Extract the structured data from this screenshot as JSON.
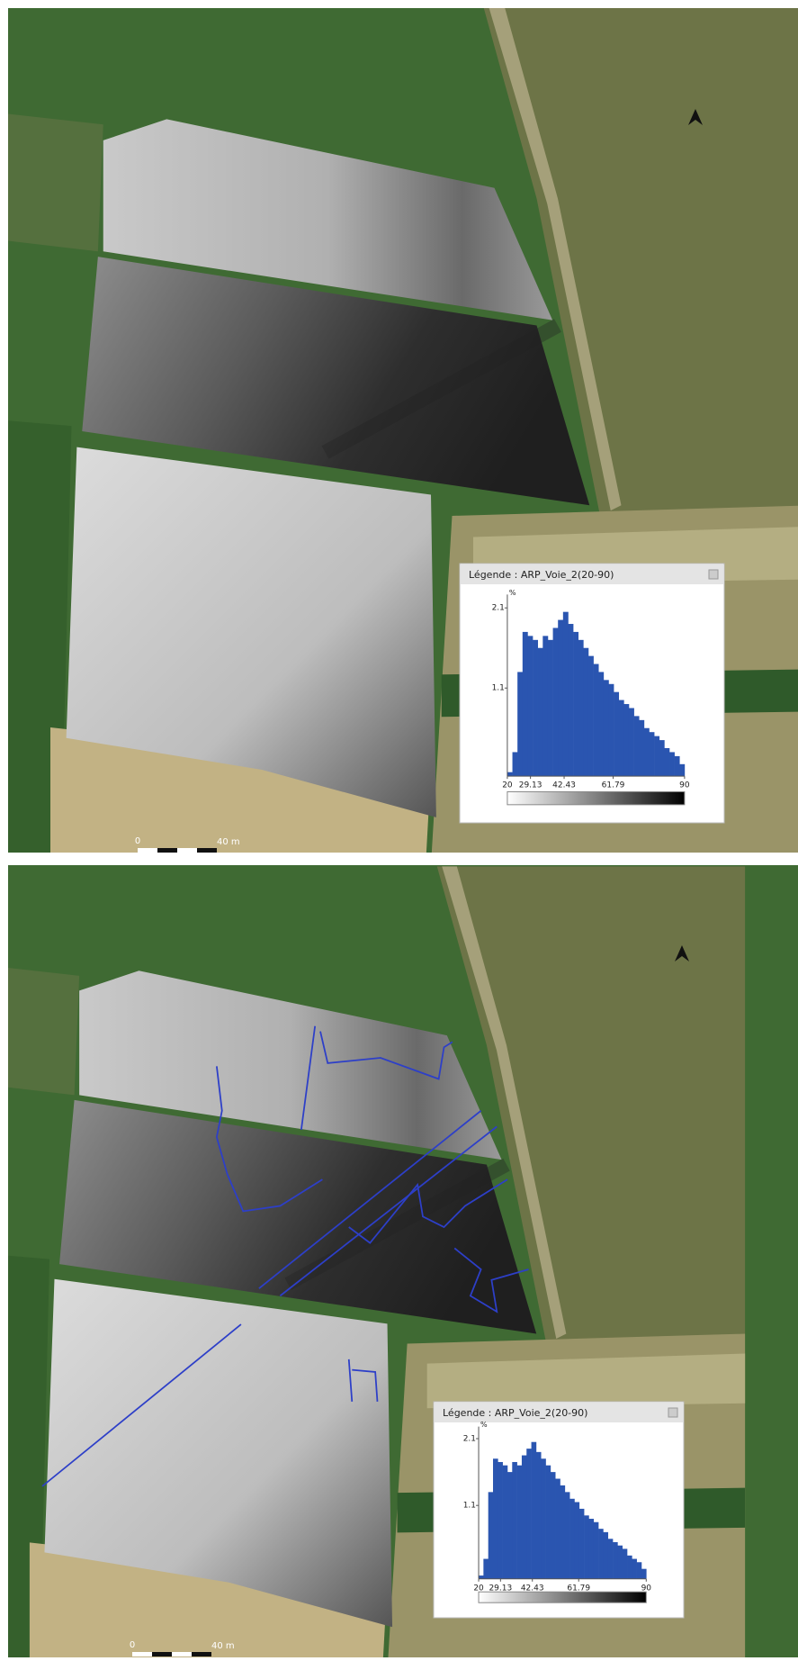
{
  "panels": [
    {
      "legend": {
        "title": "Légende : ARP_Voie_2(20-90)",
        "histogram": {
          "type": "histogram",
          "ylabel": "%",
          "color": "#2a55b0",
          "bins": [
            20,
            22,
            24,
            26,
            28,
            30,
            32,
            34,
            36,
            38,
            40,
            42,
            44,
            46,
            48,
            50,
            52,
            54,
            56,
            58,
            60,
            62,
            64,
            66,
            68,
            70,
            72,
            74,
            76,
            78,
            80,
            82,
            84,
            86,
            88,
            90
          ],
          "values": [
            0.05,
            0.3,
            1.3,
            1.8,
            1.75,
            1.7,
            1.6,
            1.75,
            1.7,
            1.85,
            1.95,
            2.05,
            1.9,
            1.8,
            1.7,
            1.6,
            1.5,
            1.4,
            1.3,
            1.2,
            1.15,
            1.05,
            0.95,
            0.9,
            0.85,
            0.75,
            0.7,
            0.6,
            0.55,
            0.5,
            0.45,
            0.35,
            0.3,
            0.25,
            0.15
          ],
          "xlim": [
            20,
            90
          ],
          "xticks": [
            20,
            29.13,
            42.43,
            61.79,
            90
          ],
          "ylim": [
            0,
            2.2
          ],
          "yticks": [
            1.1,
            2.1
          ]
        }
      },
      "scale_bar": {
        "start": "0",
        "end": "40 m"
      }
    },
    {
      "legend": {
        "title": "Légende : ARP_Voie_2(20-90)",
        "histogram": {
          "type": "histogram",
          "ylabel": "%",
          "color": "#2a55b0",
          "bins": [
            20,
            22,
            24,
            26,
            28,
            30,
            32,
            34,
            36,
            38,
            40,
            42,
            44,
            46,
            48,
            50,
            52,
            54,
            56,
            58,
            60,
            62,
            64,
            66,
            68,
            70,
            72,
            74,
            76,
            78,
            80,
            82,
            84,
            86,
            88,
            90
          ],
          "values": [
            0.05,
            0.3,
            1.3,
            1.8,
            1.75,
            1.7,
            1.6,
            1.75,
            1.7,
            1.85,
            1.95,
            2.05,
            1.9,
            1.8,
            1.7,
            1.6,
            1.5,
            1.4,
            1.3,
            1.2,
            1.15,
            1.05,
            0.95,
            0.9,
            0.85,
            0.75,
            0.7,
            0.6,
            0.55,
            0.5,
            0.45,
            0.35,
            0.3,
            0.25,
            0.15
          ],
          "xlim": [
            20,
            90
          ],
          "xticks": [
            20,
            29.13,
            42.43,
            61.79,
            90
          ],
          "ylim": [
            0,
            2.2
          ],
          "yticks": [
            1.1,
            2.1
          ]
        }
      },
      "scale_bar": {
        "start": "0",
        "end": "40 m"
      }
    }
  ]
}
